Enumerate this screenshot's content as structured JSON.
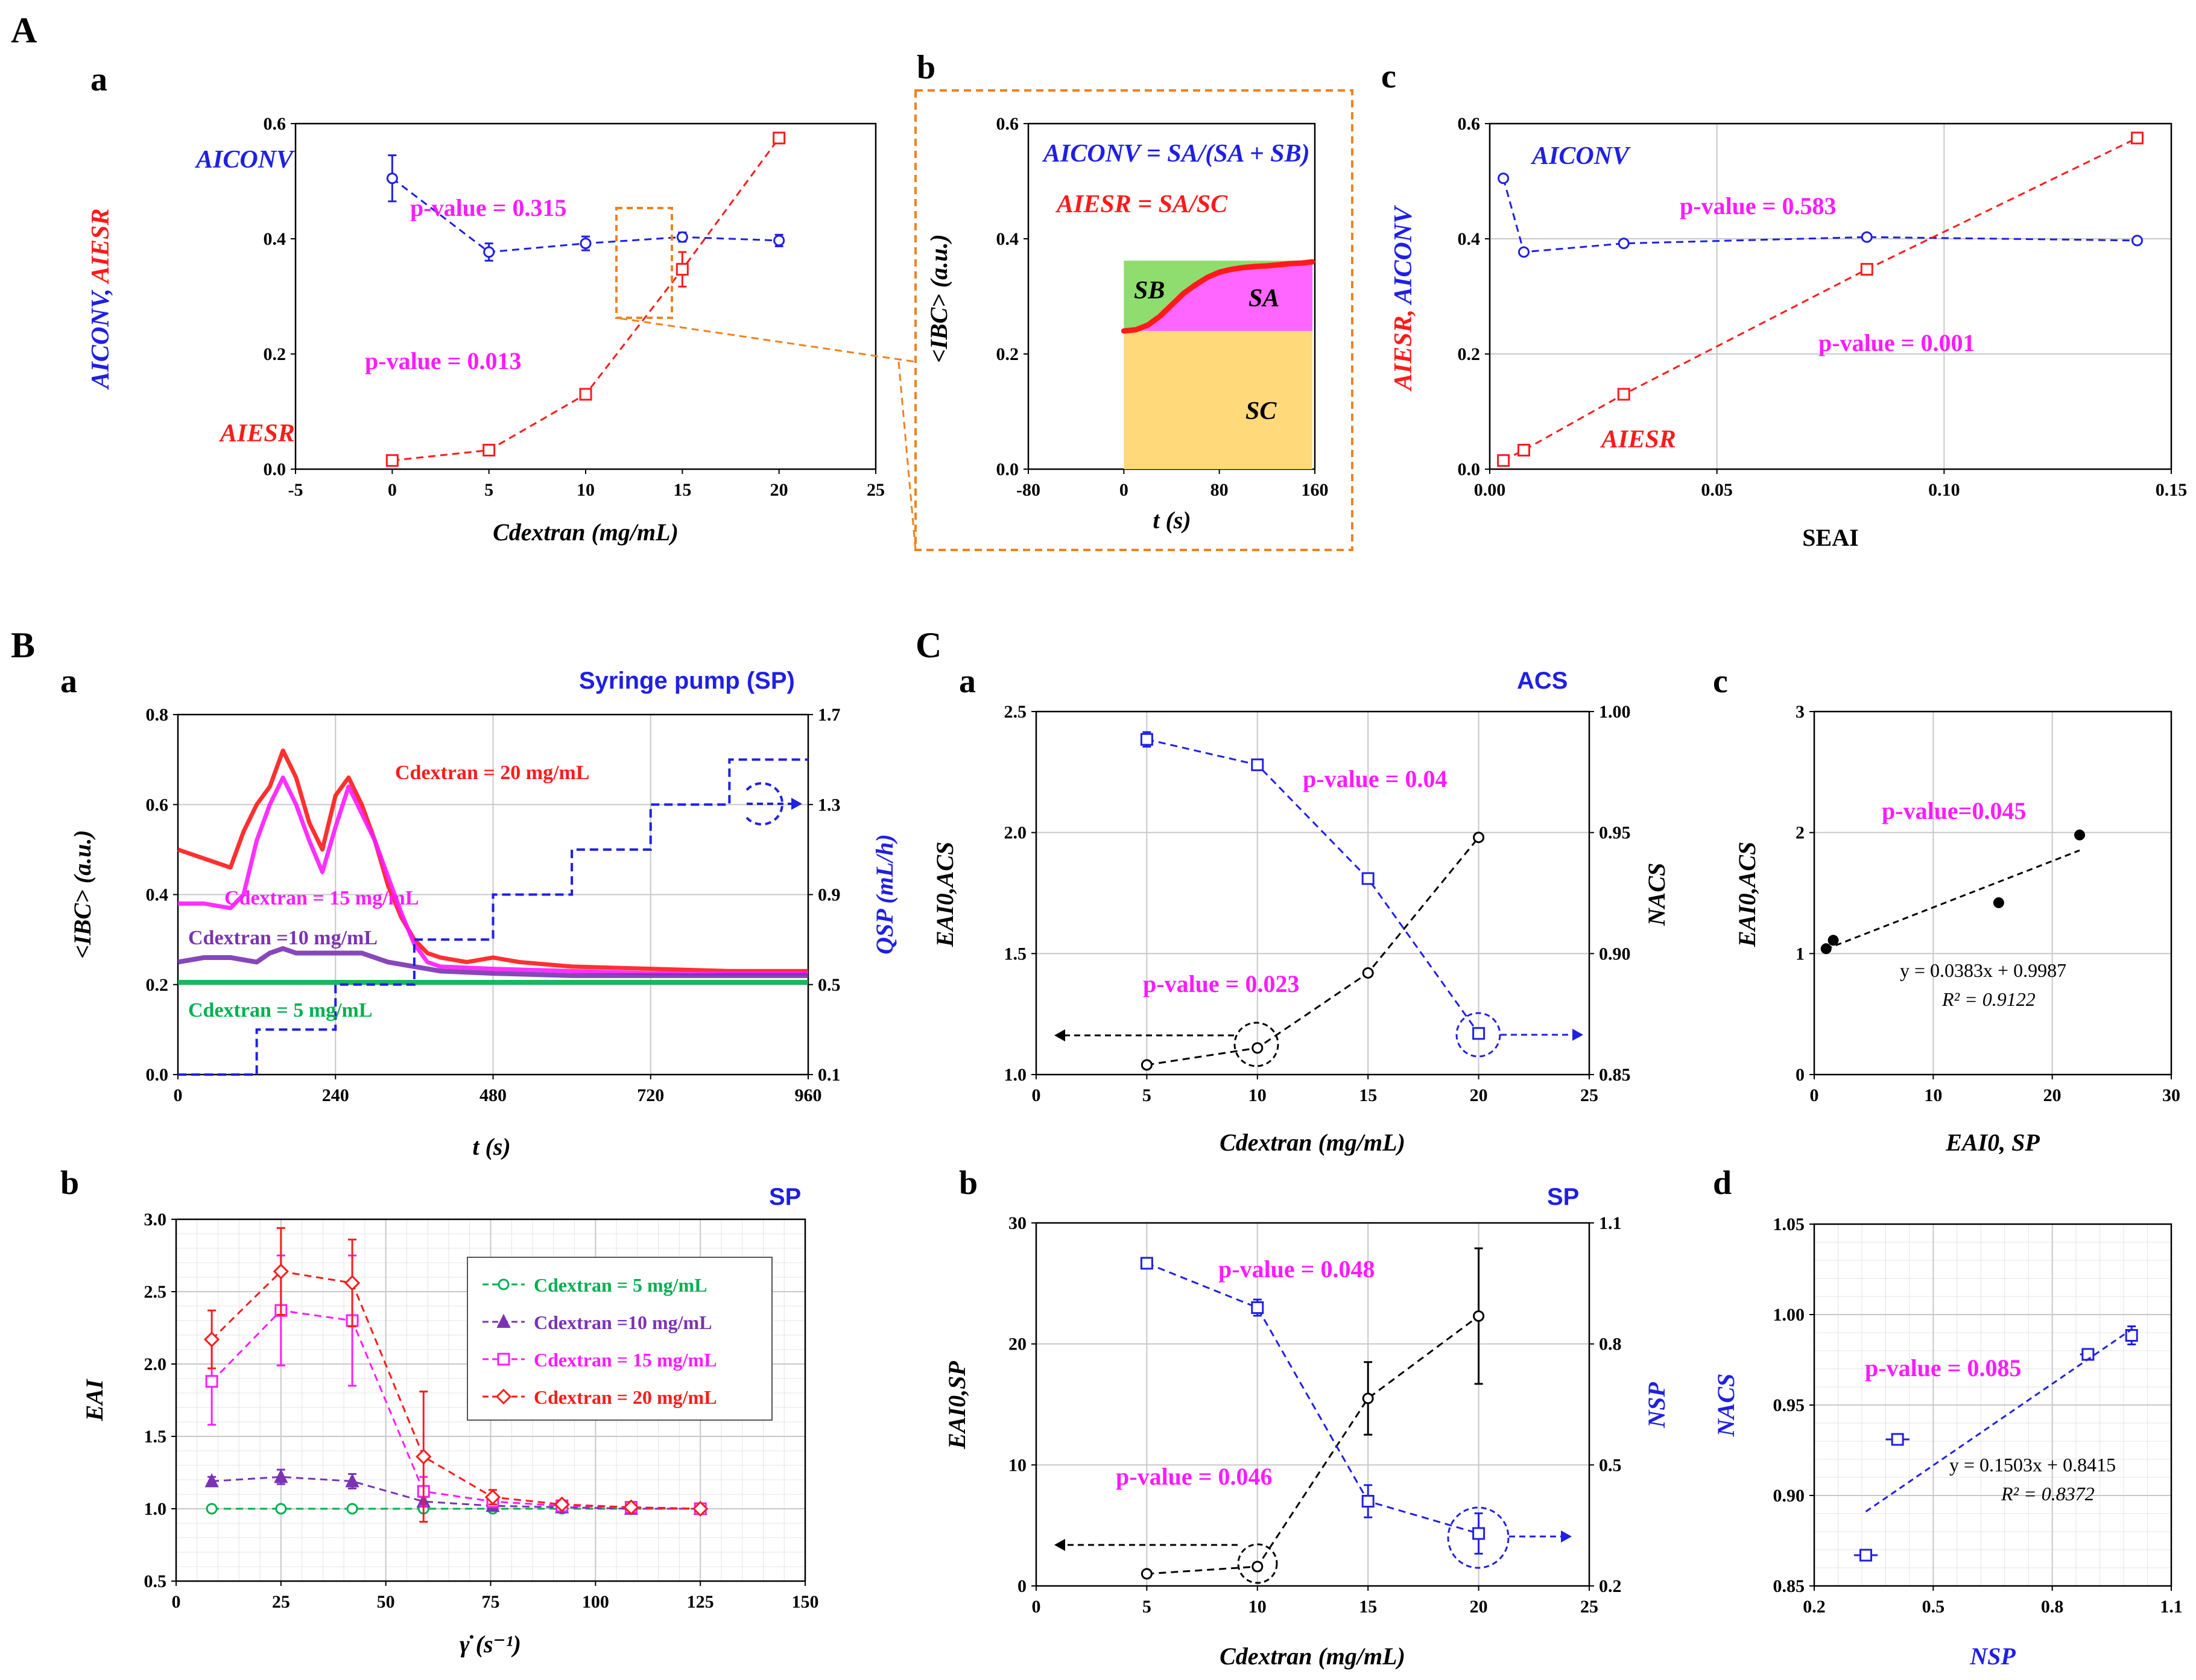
{
  "sections": {
    "A": "A",
    "B": "B",
    "C": "C"
  },
  "panels": {
    "Aa": "a",
    "Ab": "b",
    "Ac": "c",
    "Ba": "a",
    "Bb": "b",
    "Ca": "a",
    "Cb": "b",
    "Cc": "c",
    "Cd": "d"
  },
  "annotations": {
    "Aa": {
      "aiconv": "AICONV",
      "aiesr": "AIESR",
      "p_conv": "p-value = 0.315",
      "p_esr": "p-value = 0.013"
    },
    "Ab": {
      "eq1": "AICONV = SA/(SA + SB)",
      "eq2": "AIESR = SA/SC",
      "sa": "SA",
      "sb": "SB",
      "sc": "SC"
    },
    "Ac": {
      "aiconv": "AICONV",
      "aiesr": "AIESR",
      "p_conv": "p-value = 0.583",
      "p_esr": "p-value = 0.001"
    },
    "Ba": {
      "header": "Syringe pump (SP)",
      "c20": "Cdextran = 20 mg/mL",
      "c15": "Cdextran = 15 mg/mL",
      "c10": "Cdextran =10 mg/mL",
      "c5": "Cdextran = 5 mg/mL"
    },
    "Bb": {
      "header": "SP"
    },
    "Ca": {
      "header": "ACS",
      "p_n": "p-value = 0.04",
      "p_eai": "p-value = 0.023"
    },
    "Cb": {
      "header": "SP",
      "p_n": "p-value = 0.048",
      "p_eai": "p-value = 0.046"
    },
    "Cc": {
      "p": "p-value=0.045",
      "eq": "y = 0.0383x + 0.9987",
      "r2": "R² = 0.9122"
    },
    "Cd": {
      "p": "p-value = 0.085",
      "eq": "y = 0.1503x + 0.8415",
      "r2": "R² = 0.8372"
    }
  },
  "colors": {
    "blue": "#1f1fe6",
    "red": "#ff1a1a",
    "magenta": "#ff1aff",
    "purple": "#7a33b3",
    "green": "#00b050",
    "orange": "#f0821e",
    "black": "#000000"
  },
  "chart_data": [
    {
      "id": "Aa",
      "type": "scatter",
      "xlabel": "Cdextran (mg/mL)",
      "ylabel": "AICONV, AIESR",
      "xlim": [
        -5,
        25
      ],
      "ylim": [
        0,
        0.6
      ],
      "xticks": [
        -5,
        0,
        5,
        10,
        15,
        20,
        25
      ],
      "yticks": [
        0,
        0.2,
        0.4,
        0.6
      ],
      "series": [
        {
          "name": "AICONV",
          "color": "#1f1fe6",
          "marker": "circle",
          "x": [
            0,
            5,
            10,
            15,
            20
          ],
          "values": [
            0.505,
            0.377,
            0.392,
            0.403,
            0.397
          ],
          "err": [
            0.04,
            0.015,
            0.012,
            0.008,
            0.01
          ]
        },
        {
          "name": "AIESR",
          "color": "#ff1a1a",
          "marker": "square",
          "x": [
            0,
            5,
            10,
            15,
            20
          ],
          "values": [
            0.015,
            0.033,
            0.13,
            0.347,
            0.575
          ],
          "err": [
            0,
            0,
            0,
            0.03,
            0
          ]
        }
      ]
    },
    {
      "id": "Ab",
      "type": "area",
      "xlabel": "t (s)",
      "ylabel": "<IBC> (a.u.)",
      "xlim": [
        -80,
        160
      ],
      "ylim": [
        0,
        0.6
      ],
      "xticks": [
        -80,
        0,
        80,
        160
      ],
      "yticks": [
        0,
        0.2,
        0.4,
        0.6
      ],
      "series": [
        {
          "name": "<IBC>",
          "color": "#ff1a1a",
          "x": [
            0,
            10,
            20,
            30,
            40,
            50,
            60,
            70,
            80,
            90,
            100,
            110,
            120,
            130,
            140,
            150,
            158
          ],
          "values": [
            0.24,
            0.242,
            0.25,
            0.265,
            0.285,
            0.305,
            0.32,
            0.333,
            0.342,
            0.347,
            0.35,
            0.352,
            0.353,
            0.355,
            0.357,
            0.358,
            0.36
          ]
        }
      ]
    },
    {
      "id": "Ac",
      "type": "scatter",
      "xlabel": "SEAI",
      "ylabel": "AIESR, AICONV",
      "xlim": [
        0,
        0.15
      ],
      "ylim": [
        0,
        0.6
      ],
      "xticks": [
        0,
        0.05,
        0.1,
        0.15
      ],
      "yticks": [
        0,
        0.2,
        0.4,
        0.6
      ],
      "series": [
        {
          "name": "AICONV",
          "color": "#1f1fe6",
          "marker": "circle",
          "x": [
            0.003,
            0.0075,
            0.0295,
            0.083,
            0.1425
          ],
          "values": [
            0.505,
            0.377,
            0.392,
            0.403,
            0.397
          ]
        },
        {
          "name": "AIESR",
          "color": "#ff1a1a",
          "marker": "square",
          "x": [
            0.003,
            0.0075,
            0.0295,
            0.083,
            0.1425
          ],
          "values": [
            0.015,
            0.033,
            0.13,
            0.347,
            0.575
          ]
        }
      ]
    },
    {
      "id": "Ba",
      "type": "line",
      "xlabel": "t (s)",
      "ylabel": "<IBC> (a.u.)",
      "y2label": "QSP (mL/h)",
      "xlim": [
        0,
        960
      ],
      "ylim": [
        0,
        0.8
      ],
      "y2lim": [
        0.1,
        1.7
      ],
      "xticks": [
        0,
        240,
        480,
        720,
        960
      ],
      "yticks": [
        0,
        0.2,
        0.4,
        0.6,
        0.8
      ],
      "y2ticks": [
        0.1,
        0.5,
        0.9,
        1.3,
        1.7
      ],
      "series": [
        {
          "name": "Cdextran = 20 mg/mL",
          "color": "#ff1a1a",
          "x": [
            0,
            40,
            80,
            100,
            120,
            140,
            160,
            180,
            200,
            220,
            240,
            260,
            280,
            300,
            320,
            340,
            360,
            380,
            400,
            440,
            480,
            520,
            600,
            720,
            840,
            960
          ],
          "values": [
            0.5,
            0.48,
            0.46,
            0.54,
            0.6,
            0.64,
            0.72,
            0.66,
            0.56,
            0.5,
            0.62,
            0.66,
            0.6,
            0.52,
            0.42,
            0.35,
            0.3,
            0.27,
            0.26,
            0.25,
            0.26,
            0.25,
            0.24,
            0.235,
            0.23,
            0.23
          ]
        },
        {
          "name": "Cdextran = 15 mg/mL",
          "color": "#ff1aff",
          "x": [
            0,
            40,
            80,
            100,
            120,
            140,
            160,
            180,
            200,
            220,
            240,
            260,
            280,
            300,
            320,
            340,
            360,
            380,
            400,
            480,
            600,
            720,
            840,
            960
          ],
          "values": [
            0.38,
            0.38,
            0.37,
            0.4,
            0.52,
            0.6,
            0.66,
            0.6,
            0.52,
            0.45,
            0.55,
            0.64,
            0.58,
            0.52,
            0.44,
            0.36,
            0.29,
            0.25,
            0.24,
            0.235,
            0.23,
            0.225,
            0.225,
            0.225
          ]
        },
        {
          "name": "Cdextran =10 mg/mL",
          "color": "#7a33b3",
          "x": [
            0,
            40,
            80,
            120,
            140,
            160,
            180,
            200,
            240,
            280,
            320,
            360,
            400,
            480,
            600,
            720,
            840,
            960
          ],
          "values": [
            0.25,
            0.26,
            0.26,
            0.25,
            0.27,
            0.28,
            0.27,
            0.27,
            0.27,
            0.27,
            0.25,
            0.24,
            0.23,
            0.225,
            0.22,
            0.22,
            0.22,
            0.22
          ]
        },
        {
          "name": "Cdextran = 5 mg/mL",
          "color": "#00b050",
          "x": [
            0,
            120,
            240,
            480,
            720,
            960
          ],
          "values": [
            0.205,
            0.205,
            0.205,
            0.205,
            0.205,
            0.205
          ]
        },
        {
          "name": "QSP",
          "color": "#1f1fe6",
          "axis": "y2",
          "step": true,
          "x": [
            0,
            120,
            240,
            360,
            480,
            600,
            720,
            840,
            960
          ],
          "values": [
            0.1,
            0.3,
            0.5,
            0.7,
            0.9,
            1.1,
            1.3,
            1.5,
            1.5
          ]
        }
      ]
    },
    {
      "id": "Bb",
      "type": "scatter",
      "xlabel": "γ̇ (s⁻¹)",
      "ylabel": "EAI",
      "xlim": [
        0,
        150
      ],
      "ylim": [
        0.5,
        3.0
      ],
      "xticks": [
        0,
        25,
        50,
        75,
        100,
        125,
        150
      ],
      "yticks": [
        0.5,
        1.0,
        1.5,
        2.0,
        2.5,
        3.0
      ],
      "legend": "top-right",
      "series": [
        {
          "name": "Cdextran = 5 mg/mL",
          "color": "#00b050",
          "marker": "circle",
          "x": [
            8.5,
            25,
            42,
            59,
            75.5,
            92,
            108.5,
            125
          ],
          "values": [
            1.0,
            1.0,
            1.0,
            1.0,
            1.0,
            1.0,
            1.0,
            1.0
          ],
          "err": [
            0,
            0,
            0,
            0,
            0,
            0,
            0,
            0
          ]
        },
        {
          "name": "Cdextran =10 mg/mL",
          "color": "#7a33b3",
          "marker": "triangle",
          "x": [
            8.5,
            25,
            42,
            59,
            75.5,
            92,
            108.5,
            125
          ],
          "values": [
            1.19,
            1.22,
            1.19,
            1.05,
            1.02,
            1.01,
            1.0,
            1.0
          ],
          "err": [
            0.03,
            0.05,
            0.05,
            0.03,
            0.02,
            0.01,
            0.01,
            0
          ]
        },
        {
          "name": "Cdextran = 15 mg/mL",
          "color": "#ff1aff",
          "marker": "square",
          "x": [
            8.5,
            25,
            42,
            59,
            75.5,
            92,
            108.5,
            125
          ],
          "values": [
            1.88,
            2.37,
            2.3,
            1.12,
            1.05,
            1.02,
            1.01,
            1.0
          ],
          "err": [
            0.3,
            0.38,
            0.45,
            0.1,
            0.03,
            0.02,
            0.01,
            0
          ]
        },
        {
          "name": "Cdextran = 20 mg/mL",
          "color": "#ff1a1a",
          "marker": "diamond",
          "x": [
            8.5,
            25,
            42,
            59,
            75.5,
            92,
            108.5,
            125
          ],
          "values": [
            2.17,
            2.64,
            2.56,
            1.36,
            1.08,
            1.03,
            1.01,
            1.0
          ],
          "err": [
            0.2,
            0.3,
            0.3,
            0.45,
            0.05,
            0.02,
            0.01,
            0
          ]
        }
      ]
    },
    {
      "id": "Ca",
      "type": "scatter",
      "xlabel": "Cdextran (mg/mL)",
      "ylabel": "EAI0,ACS",
      "y2label": "NACS",
      "xlim": [
        0,
        25
      ],
      "ylim": [
        1.0,
        2.5
      ],
      "y2lim": [
        0.85,
        1.0
      ],
      "xticks": [
        0,
        5,
        10,
        15,
        20,
        25
      ],
      "yticks": [
        1.0,
        1.5,
        2.0,
        2.5
      ],
      "y2ticks": [
        0.85,
        0.9,
        0.95,
        1.0
      ],
      "series": [
        {
          "name": "EAI0,ACS",
          "color": "#000000",
          "marker": "circle",
          "x": [
            5,
            10,
            15,
            20
          ],
          "values": [
            1.04,
            1.11,
            1.42,
            1.98
          ]
        },
        {
          "name": "NACS",
          "color": "#1f1fe6",
          "marker": "square",
          "axis": "y2",
          "x": [
            5,
            10,
            15,
            20
          ],
          "values": [
            0.9885,
            0.978,
            0.931,
            0.867
          ],
          "err": [
            0.003,
            0.002,
            0.002,
            0.002
          ]
        }
      ]
    },
    {
      "id": "Cb",
      "type": "scatter",
      "xlabel": "Cdextran (mg/mL)",
      "ylabel": "EAI0,SP",
      "y2label": "NSP",
      "xlim": [
        0,
        25
      ],
      "ylim": [
        0,
        30
      ],
      "y2lim": [
        0.2,
        1.1
      ],
      "xticks": [
        0,
        5,
        10,
        15,
        20,
        25
      ],
      "yticks": [
        0,
        10,
        20,
        30
      ],
      "y2ticks": [
        0.2,
        0.5,
        0.8,
        1.1
      ],
      "series": [
        {
          "name": "EAI0,SP",
          "color": "#000000",
          "marker": "circle",
          "x": [
            5,
            10,
            15,
            20
          ],
          "values": [
            1.0,
            1.6,
            15.5,
            22.3
          ],
          "err": [
            0,
            0.3,
            3,
            5.6
          ]
        },
        {
          "name": "NSP",
          "color": "#1f1fe6",
          "marker": "square",
          "axis": "y2",
          "x": [
            5,
            10,
            15,
            20
          ],
          "values": [
            1.0,
            0.89,
            0.41,
            0.33
          ],
          "err": [
            0.005,
            0.02,
            0.04,
            0.05
          ]
        }
      ]
    },
    {
      "id": "Cc",
      "type": "scatter",
      "xlabel": "EAI0, SP",
      "ylabel": "EAI0,ACS",
      "xlim": [
        0,
        30
      ],
      "ylim": [
        0,
        3
      ],
      "xticks": [
        0,
        10,
        20,
        30
      ],
      "yticks": [
        0,
        1,
        2,
        3
      ],
      "series": [
        {
          "name": "data",
          "color": "#000000",
          "marker": "circle",
          "x": [
            1.0,
            1.6,
            15.5,
            22.3
          ],
          "values": [
            1.04,
            1.11,
            1.42,
            1.98
          ]
        }
      ],
      "trendline": {
        "slope": 0.0383,
        "intercept": 0.9987,
        "x": [
          1.0,
          22.3
        ]
      }
    },
    {
      "id": "Cd",
      "type": "scatter",
      "xlabel": "NSP",
      "ylabel": "NACS",
      "xlim": [
        0.2,
        1.1
      ],
      "ylim": [
        0.85,
        1.05
      ],
      "xticks": [
        0.2,
        0.5,
        0.8,
        1.1
      ],
      "yticks": [
        0.85,
        0.9,
        0.95,
        1.0,
        1.05
      ],
      "series": [
        {
          "name": "data",
          "color": "#1f1fe6",
          "marker": "square",
          "x": [
            0.33,
            0.41,
            0.89,
            1.0
          ],
          "values": [
            0.867,
            0.931,
            0.978,
            0.9885
          ],
          "xerr": [
            0.03,
            0.03,
            0.02,
            0.005
          ],
          "err": [
            0.001,
            0.002,
            0.002,
            0.005
          ]
        }
      ],
      "trendline": {
        "slope": 0.1503,
        "intercept": 0.8415,
        "x": [
          0.33,
          1.0
        ]
      }
    }
  ]
}
